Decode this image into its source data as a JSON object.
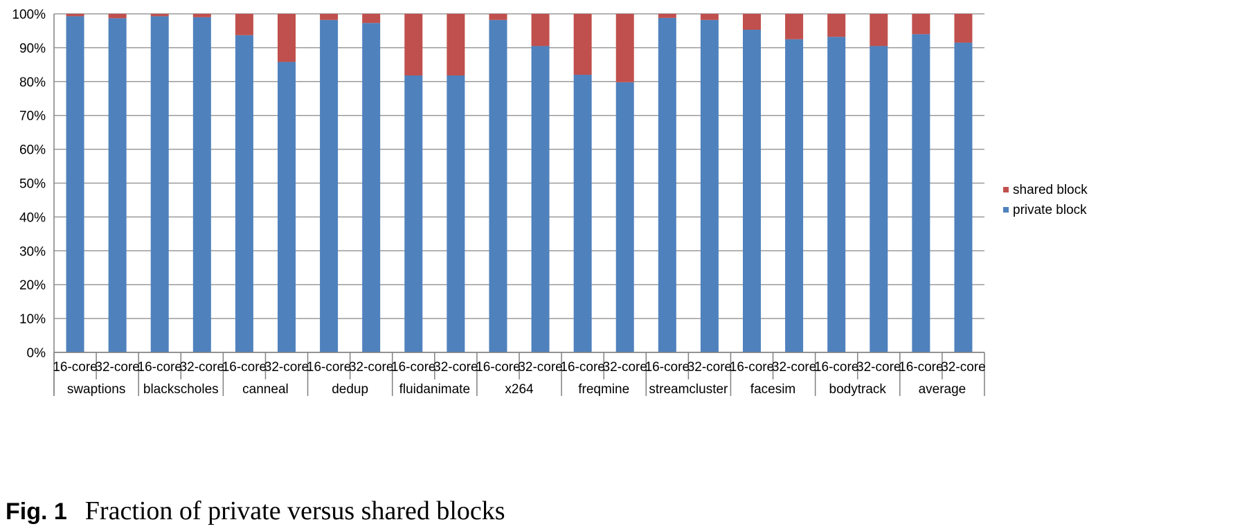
{
  "chart_data": {
    "type": "bar",
    "stacked": true,
    "percent": true,
    "title": "",
    "xlabel": "",
    "ylabel": "",
    "ylim": [
      0,
      100
    ],
    "yticks": [
      "0%",
      "10%",
      "20%",
      "30%",
      "40%",
      "50%",
      "60%",
      "70%",
      "80%",
      "90%",
      "100%"
    ],
    "grid": true,
    "legend_position": "right",
    "groups": [
      "swaptions",
      "blackscholes",
      "canneal",
      "dedup",
      "fluidanimate",
      "x264",
      "freqmine",
      "streamcluster",
      "facesim",
      "bodytrack",
      "average"
    ],
    "subcategories": [
      "16-core",
      "32-core"
    ],
    "series": [
      {
        "name": "private block",
        "color": "#4f81bd",
        "values": [
          99.3,
          98.7,
          99.3,
          99.0,
          93.7,
          85.8,
          98.2,
          97.3,
          81.8,
          81.8,
          98.2,
          90.5,
          82.0,
          79.8,
          98.8,
          98.2,
          95.3,
          92.5,
          93.2,
          90.5,
          94.0,
          91.5
        ]
      },
      {
        "name": "shared block",
        "color": "#c0504d",
        "values": [
          0.7,
          1.3,
          0.7,
          1.0,
          6.3,
          14.2,
          1.8,
          2.7,
          18.2,
          18.2,
          1.8,
          9.5,
          18.0,
          20.2,
          1.2,
          1.8,
          4.7,
          7.5,
          6.8,
          9.5,
          6.0,
          8.5
        ]
      }
    ]
  },
  "caption": {
    "label": "Fig. 1",
    "text": "Fraction of private versus shared blocks"
  }
}
